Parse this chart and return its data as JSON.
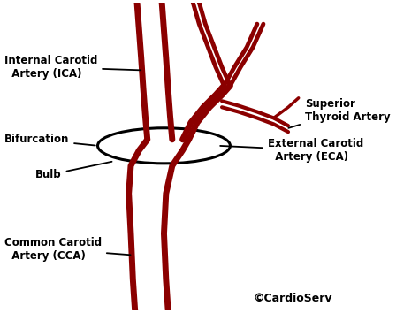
{
  "bg_color": "#ffffff",
  "artery_color": "#8B0000",
  "artery_lw": 5.0,
  "ellipse_color": "#000000",
  "ellipse_lw": 2.2,
  "label_color": "#000000",
  "label_fontsize": 8.5,
  "label_fontweight": "bold",
  "copyright_text": "©CardioServ",
  "copyright_fontsize": 9,
  "labels": {
    "ICA": "Internal Carotid\n  Artery (ICA)",
    "CCA": "Common Carotid\n  Artery (CCA)",
    "Bifurcation": "Bifurcation",
    "Bulb": "Bulb",
    "STA": "Superior\nThyroid Artery",
    "ECA": "External Carotid\n  Artery (ECA)"
  },
  "xlim": [
    0,
    10
  ],
  "ylim": [
    0,
    10
  ],
  "figsize": [
    4.74,
    3.54
  ],
  "dpi": 100
}
